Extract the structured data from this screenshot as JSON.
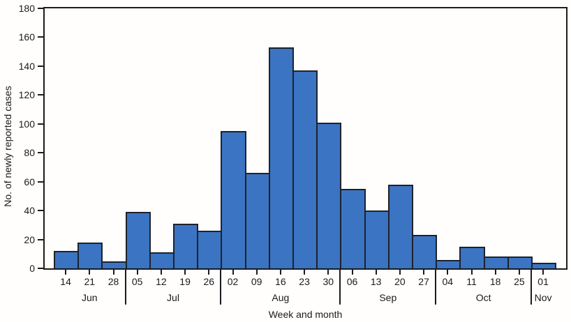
{
  "figure": {
    "background": "#fffefd",
    "axis_color": "#1c1c1e",
    "text_color": "#1a1a1a"
  },
  "chart_data": {
    "type": "bar",
    "title": "",
    "xlabel": "Week and month",
    "ylabel": "No. of newly reported cases",
    "ylim": [
      0,
      180
    ],
    "ytick_interval": 20,
    "yticks": [
      0,
      20,
      40,
      60,
      80,
      100,
      120,
      140,
      160,
      180
    ],
    "grid": false,
    "legend_position": "none",
    "bar_fill": "#3B74C2",
    "bar_border": "#1E222B",
    "groups": [
      {
        "month": "Jun",
        "weeks": [
          "14",
          "21",
          "28"
        ],
        "values": [
          12,
          18,
          5
        ]
      },
      {
        "month": "Jul",
        "weeks": [
          "05",
          "12",
          "19",
          "26"
        ],
        "values": [
          39,
          11,
          31,
          26
        ]
      },
      {
        "month": "Aug",
        "weeks": [
          "02",
          "09",
          "16",
          "23",
          "30"
        ],
        "values": [
          95,
          66,
          153,
          137,
          101
        ]
      },
      {
        "month": "Sep",
        "weeks": [
          "06",
          "13",
          "20",
          "27"
        ],
        "values": [
          55,
          40,
          58,
          23
        ]
      },
      {
        "month": "Oct",
        "weeks": [
          "04",
          "11",
          "18",
          "25"
        ],
        "values": [
          6,
          15,
          8,
          8
        ]
      },
      {
        "month": "Nov",
        "weeks": [
          "01"
        ],
        "values": [
          4
        ]
      }
    ]
  }
}
